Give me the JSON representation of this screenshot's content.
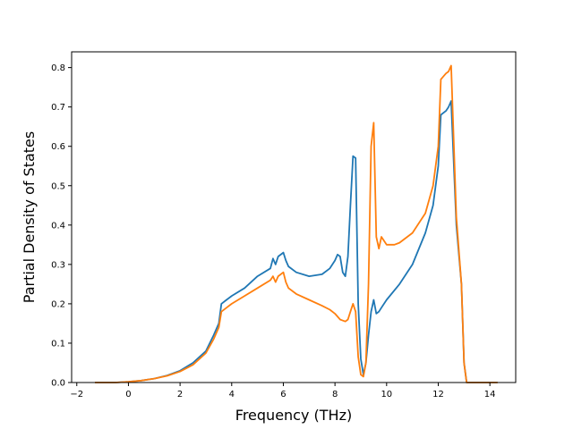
{
  "chart_data": {
    "type": "line",
    "xlabel": "Frequency (THz)",
    "ylabel": "Partial Density of States",
    "xlim": [
      -2.2,
      15.0
    ],
    "ylim": [
      0.0,
      0.84
    ],
    "xticks": [
      "−2",
      "0",
      "2",
      "4",
      "6",
      "8",
      "10",
      "12",
      "14"
    ],
    "yticks": [
      "0.0",
      "0.1",
      "0.2",
      "0.3",
      "0.4",
      "0.5",
      "0.6",
      "0.7",
      "0.8"
    ],
    "grid": false,
    "series": [
      {
        "color": "#1f77b4",
        "x": [
          -1.3,
          -0.5,
          0.0,
          0.5,
          1.0,
          1.5,
          2.0,
          2.5,
          3.0,
          3.3,
          3.5,
          3.6,
          3.8,
          4.0,
          4.5,
          5.0,
          5.5,
          5.6,
          5.7,
          5.8,
          6.0,
          6.1,
          6.2,
          6.5,
          7.0,
          7.5,
          7.8,
          8.0,
          8.1,
          8.2,
          8.3,
          8.4,
          8.5,
          8.6,
          8.7,
          8.8,
          8.9,
          9.0,
          9.1,
          9.2,
          9.3,
          9.4,
          9.5,
          9.6,
          9.7,
          9.8,
          10.0,
          10.5,
          11.0,
          11.5,
          11.8,
          12.0,
          12.1,
          12.3,
          12.4,
          12.5,
          12.7,
          12.9,
          13.0,
          13.1,
          14.0,
          14.3
        ],
        "y": [
          0.0,
          0.0,
          0.002,
          0.005,
          0.01,
          0.018,
          0.03,
          0.05,
          0.08,
          0.12,
          0.15,
          0.2,
          0.21,
          0.22,
          0.24,
          0.27,
          0.29,
          0.315,
          0.3,
          0.32,
          0.33,
          0.31,
          0.295,
          0.28,
          0.27,
          0.275,
          0.29,
          0.31,
          0.325,
          0.32,
          0.28,
          0.27,
          0.32,
          0.45,
          0.575,
          0.57,
          0.2,
          0.06,
          0.02,
          0.05,
          0.12,
          0.18,
          0.21,
          0.175,
          0.18,
          0.19,
          0.21,
          0.25,
          0.3,
          0.38,
          0.45,
          0.55,
          0.68,
          0.69,
          0.7,
          0.715,
          0.4,
          0.25,
          0.05,
          0.0,
          0.0,
          0.0
        ]
      },
      {
        "color": "#ff7f0e",
        "x": [
          -1.3,
          -0.5,
          0.0,
          0.5,
          1.0,
          1.5,
          2.0,
          2.5,
          3.0,
          3.3,
          3.5,
          3.6,
          3.8,
          4.0,
          4.5,
          5.0,
          5.5,
          5.6,
          5.7,
          5.8,
          6.0,
          6.1,
          6.2,
          6.5,
          7.0,
          7.5,
          7.8,
          8.0,
          8.2,
          8.4,
          8.5,
          8.6,
          8.7,
          8.8,
          8.9,
          9.0,
          9.1,
          9.2,
          9.3,
          9.4,
          9.5,
          9.6,
          9.7,
          9.8,
          10.0,
          10.3,
          10.5,
          11.0,
          11.5,
          11.8,
          12.0,
          12.1,
          12.3,
          12.4,
          12.5,
          12.7,
          12.9,
          13.0,
          13.1,
          14.0,
          14.3
        ],
        "y": [
          0.0,
          0.0,
          0.002,
          0.005,
          0.01,
          0.017,
          0.028,
          0.045,
          0.075,
          0.11,
          0.14,
          0.18,
          0.19,
          0.2,
          0.22,
          0.24,
          0.26,
          0.27,
          0.255,
          0.27,
          0.28,
          0.255,
          0.24,
          0.225,
          0.21,
          0.195,
          0.185,
          0.175,
          0.16,
          0.155,
          0.16,
          0.18,
          0.2,
          0.18,
          0.065,
          0.02,
          0.015,
          0.05,
          0.25,
          0.6,
          0.66,
          0.37,
          0.34,
          0.37,
          0.35,
          0.35,
          0.355,
          0.38,
          0.43,
          0.5,
          0.6,
          0.77,
          0.785,
          0.79,
          0.805,
          0.42,
          0.25,
          0.05,
          0.0,
          0.0,
          0.0
        ]
      }
    ]
  }
}
